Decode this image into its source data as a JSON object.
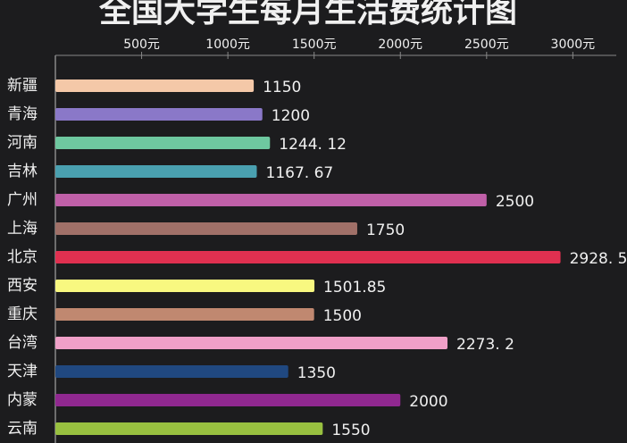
{
  "chart_data": {
    "type": "bar",
    "orientation": "horizontal",
    "title": "全国大学生每月生活费统计图",
    "categories": [
      "新疆",
      "青海",
      "河南",
      "吉林",
      "广州",
      "上海",
      "北京",
      "西安",
      "重庆",
      "台湾",
      "天津",
      "内蒙",
      "云南"
    ],
    "values": [
      1150,
      1200,
      1244.12,
      1167.67,
      2500,
      1750,
      2928.5,
      1501.85,
      1500,
      2273.2,
      1350,
      2000,
      1550
    ],
    "value_labels": [
      "1150",
      "1200",
      "1244. 12",
      "1167. 67",
      "2500",
      "1750",
      "2928. 5",
      "1501.85",
      "1500",
      "2273. 2",
      "1350",
      "2000",
      "1550"
    ],
    "colors": [
      "#f4c8a8",
      "#8a78c8",
      "#6ec8a0",
      "#4aa0b0",
      "#c060a8",
      "#a07068",
      "#e03050",
      "#f8f880",
      "#c08870",
      "#f0a0c8",
      "#204880",
      "#902890",
      "#98c040"
    ],
    "xlim": [
      0,
      3200
    ],
    "xticks": [
      {
        "value": 500,
        "label": "500元"
      },
      {
        "value": 1000,
        "label": "1000元"
      },
      {
        "value": 1500,
        "label": "1500元"
      },
      {
        "value": 2000,
        "label": "2000元"
      },
      {
        "value": 2500,
        "label": "2500元"
      },
      {
        "value": 3000,
        "label": "3000元"
      }
    ]
  }
}
